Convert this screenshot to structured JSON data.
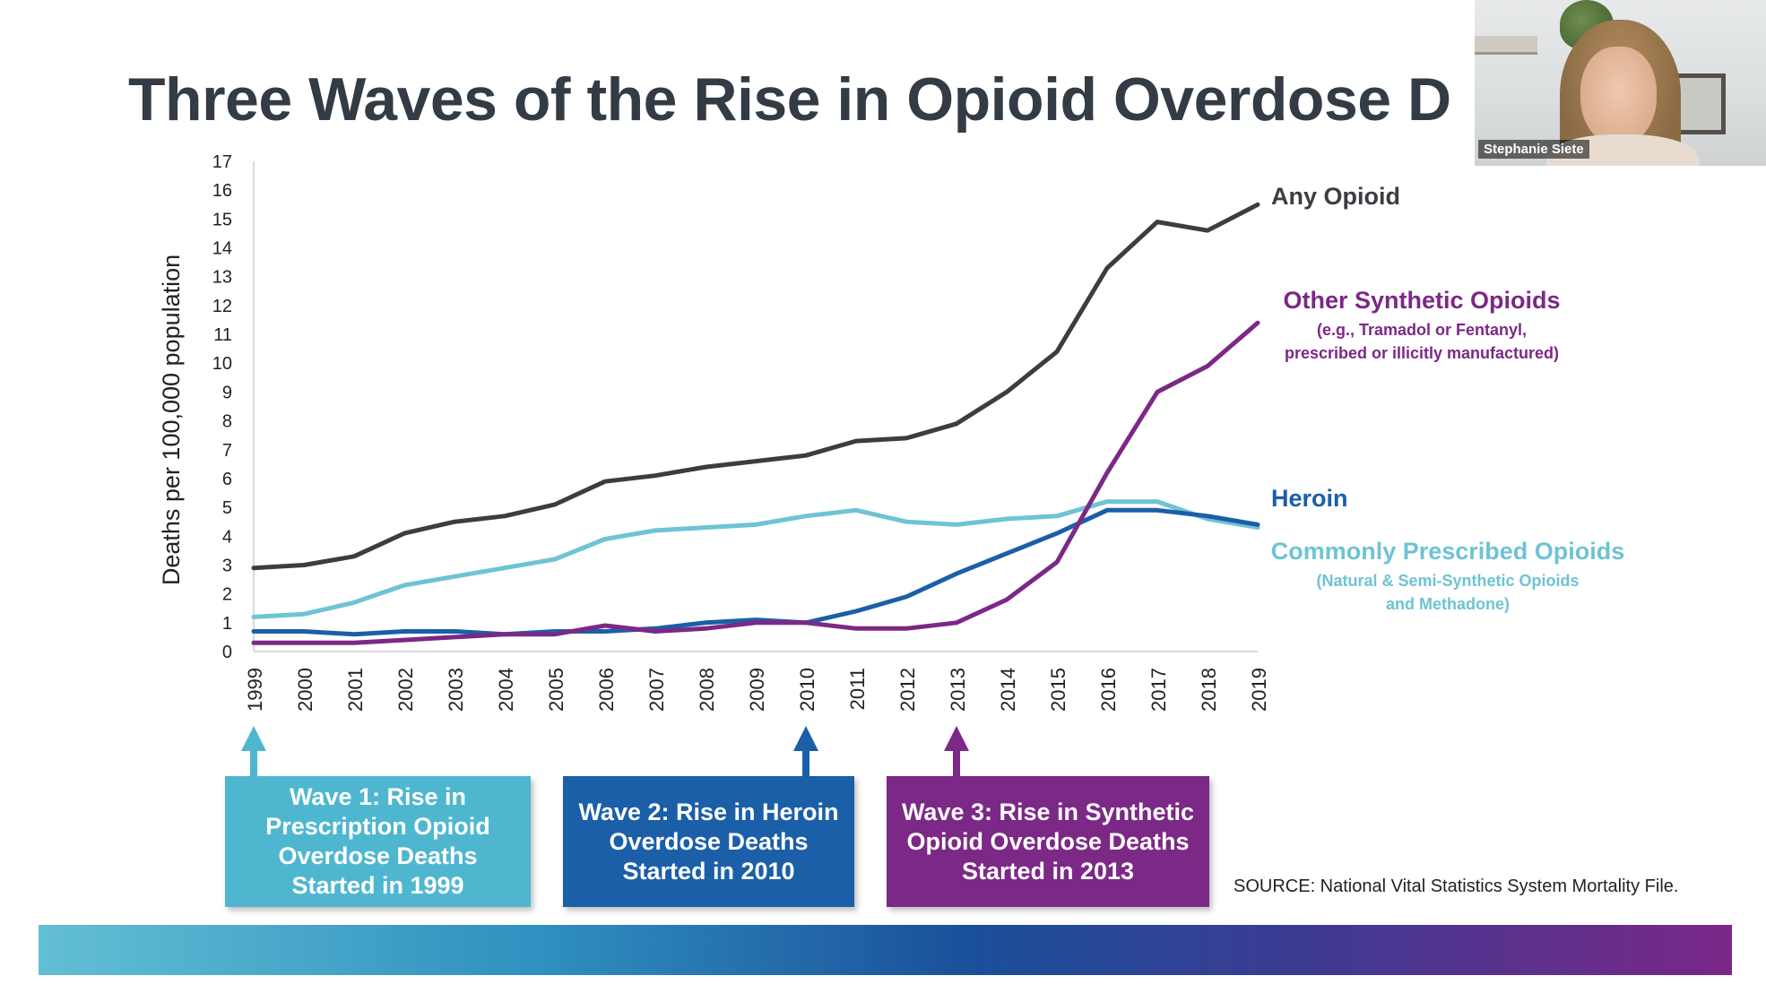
{
  "slide": {
    "title": "Three Waves of the Rise in Opioid Overdose D",
    "source": "SOURCE: National Vital Statistics System Mortality File."
  },
  "waves": [
    {
      "label": "Wave 1: Rise in Prescription Opioid Overdose Deaths Started in 1999",
      "year": 1999,
      "color": "#4eb7cf"
    },
    {
      "label": "Wave 2: Rise in Heroin Overdose Deaths Started in 2010",
      "year": 2010,
      "color": "#1a5fa8"
    },
    {
      "label": "Wave 3: Rise in Synthetic Opioid Overdose Deaths Started in 2013",
      "year": 2013,
      "color": "#7c2886"
    }
  ],
  "webcam": {
    "participant_name": "Stephanie Siete"
  },
  "colors": {
    "any": "#3a3d41",
    "synthetic": "#7c2886",
    "heroin": "#1a5fa8",
    "prescribed": "#6ec3d4"
  },
  "chart_data": {
    "type": "line",
    "title": "Three Waves of the Rise in Opioid Overdose D",
    "xlabel": "",
    "ylabel": "Deaths per 100,000 population",
    "ylim": [
      0,
      17
    ],
    "yticks": [
      0,
      1,
      2,
      3,
      4,
      5,
      6,
      7,
      8,
      9,
      10,
      11,
      12,
      13,
      14,
      15,
      16,
      17
    ],
    "x": [
      "1999",
      "2000",
      "2001",
      "2002",
      "2003",
      "2004",
      "2005",
      "2006",
      "2007",
      "2008",
      "2009",
      "2010",
      "2011",
      "2012",
      "2013",
      "2014",
      "2015",
      "2016",
      "2017",
      "2018",
      "2019"
    ],
    "series": [
      {
        "key": "any",
        "name": "Any Opioid",
        "sublabel": [],
        "color": "#3a3d41",
        "values": [
          2.9,
          3.0,
          3.3,
          4.1,
          4.5,
          4.7,
          5.1,
          5.9,
          6.1,
          6.4,
          6.6,
          6.8,
          7.3,
          7.4,
          7.9,
          9.0,
          10.4,
          13.3,
          14.9,
          14.6,
          15.5
        ]
      },
      {
        "key": "synthetic",
        "name": "Other Synthetic Opioids",
        "sublabel": [
          "(e.g., Tramadol or Fentanyl,",
          "prescribed or illicitly manufactured)"
        ],
        "color": "#7c2886",
        "values": [
          0.3,
          0.3,
          0.3,
          0.4,
          0.5,
          0.6,
          0.6,
          0.9,
          0.7,
          0.8,
          1.0,
          1.0,
          0.8,
          0.8,
          1.0,
          1.8,
          3.1,
          6.2,
          9.0,
          9.9,
          11.4
        ]
      },
      {
        "key": "heroin",
        "name": "Heroin",
        "sublabel": [],
        "color": "#1a5fa8",
        "values": [
          0.7,
          0.7,
          0.6,
          0.7,
          0.7,
          0.6,
          0.7,
          0.7,
          0.8,
          1.0,
          1.1,
          1.0,
          1.4,
          1.9,
          2.7,
          3.4,
          4.1,
          4.9,
          4.9,
          4.7,
          4.4
        ]
      },
      {
        "key": "prescribed",
        "name": "Commonly Prescribed Opioids",
        "sublabel": [
          "(Natural & Semi-Synthetic Opioids",
          "and Methadone)"
        ],
        "color": "#6ec3d4",
        "values": [
          1.2,
          1.3,
          1.7,
          2.3,
          2.6,
          2.9,
          3.2,
          3.9,
          4.2,
          4.3,
          4.4,
          4.7,
          4.9,
          4.5,
          4.4,
          4.6,
          4.7,
          5.2,
          5.2,
          4.6,
          4.3
        ]
      }
    ],
    "legend": "right-side inline labels"
  }
}
